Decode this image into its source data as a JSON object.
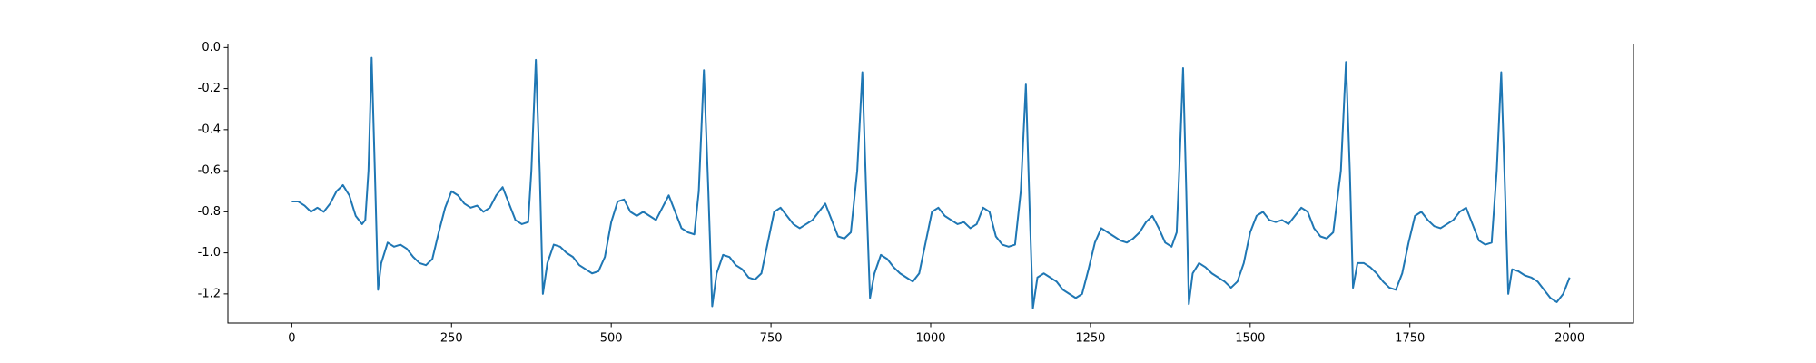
{
  "chart_data": {
    "type": "line",
    "color": "#1f77b4",
    "x": [
      0,
      10,
      20,
      30,
      40,
      50,
      60,
      70,
      80,
      90,
      100,
      110,
      115,
      120,
      125,
      130,
      135,
      140,
      150,
      160,
      170,
      180,
      190,
      200,
      210,
      220,
      230,
      240,
      250,
      260,
      270,
      280,
      290,
      300,
      310,
      320,
      330,
      340,
      350,
      360,
      370,
      375,
      382,
      388,
      393,
      400,
      410,
      420,
      430,
      440,
      450,
      460,
      470,
      480,
      490,
      500,
      510,
      520,
      530,
      540,
      550,
      560,
      570,
      580,
      590,
      600,
      610,
      620,
      630,
      637,
      645,
      652,
      658,
      665,
      675,
      685,
      695,
      705,
      715,
      725,
      735,
      745,
      755,
      765,
      775,
      785,
      795,
      805,
      815,
      825,
      835,
      845,
      855,
      865,
      875,
      885,
      893,
      899,
      905,
      912,
      922,
      932,
      942,
      952,
      962,
      972,
      982,
      992,
      1002,
      1012,
      1022,
      1032,
      1042,
      1052,
      1062,
      1072,
      1082,
      1092,
      1102,
      1112,
      1122,
      1132,
      1141,
      1149,
      1155,
      1160,
      1167,
      1177,
      1187,
      1197,
      1207,
      1217,
      1227,
      1237,
      1247,
      1257,
      1267,
      1277,
      1287,
      1297,
      1307,
      1317,
      1327,
      1337,
      1347,
      1357,
      1367,
      1377,
      1385,
      1389,
      1395,
      1400,
      1404,
      1410,
      1420,
      1430,
      1440,
      1450,
      1460,
      1470,
      1480,
      1490,
      1500,
      1510,
      1520,
      1530,
      1540,
      1550,
      1560,
      1570,
      1580,
      1590,
      1600,
      1610,
      1620,
      1630,
      1642,
      1650,
      1656,
      1661,
      1668,
      1678,
      1688,
      1698,
      1708,
      1718,
      1728,
      1738,
      1748,
      1758,
      1768,
      1778,
      1788,
      1798,
      1808,
      1818,
      1828,
      1838,
      1848,
      1858,
      1868,
      1878,
      1886,
      1893,
      1899,
      1904,
      1910,
      1920,
      1930,
      1940,
      1950,
      1960,
      1970,
      1980,
      1990,
      2000
    ],
    "values": [
      -0.75,
      -0.75,
      -0.77,
      -0.8,
      -0.78,
      -0.8,
      -0.76,
      -0.7,
      -0.67,
      -0.72,
      -0.82,
      -0.86,
      -0.84,
      -0.6,
      -0.05,
      -0.6,
      -1.18,
      -1.05,
      -0.95,
      -0.97,
      -0.96,
      -0.98,
      -1.02,
      -1.05,
      -1.06,
      -1.03,
      -0.9,
      -0.78,
      -0.7,
      -0.72,
      -0.76,
      -0.78,
      -0.77,
      -0.8,
      -0.78,
      -0.72,
      -0.68,
      -0.76,
      -0.84,
      -0.86,
      -0.85,
      -0.6,
      -0.06,
      -0.6,
      -1.2,
      -1.05,
      -0.96,
      -0.97,
      -1.0,
      -1.02,
      -1.06,
      -1.08,
      -1.1,
      -1.09,
      -1.02,
      -0.85,
      -0.75,
      -0.74,
      -0.8,
      -0.82,
      -0.8,
      -0.82,
      -0.84,
      -0.78,
      -0.72,
      -0.8,
      -0.88,
      -0.9,
      -0.91,
      -0.7,
      -0.11,
      -0.7,
      -1.26,
      -1.1,
      -1.01,
      -1.02,
      -1.06,
      -1.08,
      -1.12,
      -1.13,
      -1.1,
      -0.95,
      -0.8,
      -0.78,
      -0.82,
      -0.86,
      -0.88,
      -0.86,
      -0.84,
      -0.8,
      -0.76,
      -0.84,
      -0.92,
      -0.93,
      -0.9,
      -0.6,
      -0.12,
      -0.7,
      -1.22,
      -1.1,
      -1.01,
      -1.03,
      -1.07,
      -1.1,
      -1.12,
      -1.14,
      -1.1,
      -0.95,
      -0.8,
      -0.78,
      -0.82,
      -0.84,
      -0.86,
      -0.85,
      -0.88,
      -0.86,
      -0.78,
      -0.8,
      -0.92,
      -0.96,
      -0.97,
      -0.96,
      -0.7,
      -0.18,
      -0.8,
      -1.27,
      -1.12,
      -1.1,
      -1.12,
      -1.14,
      -1.18,
      -1.2,
      -1.22,
      -1.2,
      -1.08,
      -0.95,
      -0.88,
      -0.9,
      -0.92,
      -0.94,
      -0.95,
      -0.93,
      -0.9,
      -0.85,
      -0.82,
      -0.88,
      -0.95,
      -0.97,
      -0.9,
      -0.6,
      -0.1,
      -0.7,
      -1.25,
      -1.1,
      -1.05,
      -1.07,
      -1.1,
      -1.12,
      -1.14,
      -1.17,
      -1.14,
      -1.05,
      -0.9,
      -0.82,
      -0.8,
      -0.84,
      -0.85,
      -0.84,
      -0.86,
      -0.82,
      -0.78,
      -0.8,
      -0.88,
      -0.92,
      -0.93,
      -0.9,
      -0.6,
      -0.07,
      -0.6,
      -1.17,
      -1.05,
      -1.05,
      -1.07,
      -1.1,
      -1.14,
      -1.17,
      -1.18,
      -1.1,
      -0.95,
      -0.82,
      -0.8,
      -0.84,
      -0.87,
      -0.88,
      -0.86,
      -0.84,
      -0.8,
      -0.78,
      -0.86,
      -0.94,
      -0.96,
      -0.95,
      -0.6,
      -0.12,
      -0.7,
      -1.2,
      -1.08,
      -1.09,
      -1.11,
      -1.12,
      -1.14,
      -1.18,
      -1.22,
      -1.24,
      -1.2,
      -1.12
    ],
    "xlim": [
      -100,
      2100
    ],
    "xticks": [
      0,
      250,
      500,
      750,
      1000,
      1250,
      1500,
      1750,
      2000
    ],
    "ylim": [
      -1.342,
      0.017
    ],
    "yticks": [
      {
        "value": 0,
        "label": "0.0"
      },
      {
        "value": -0.2,
        "label": "-0.2"
      },
      {
        "value": -0.4,
        "label": "-0.4"
      },
      {
        "value": -0.6,
        "label": "-0.6"
      },
      {
        "value": -0.8,
        "label": "-0.8"
      },
      {
        "value": -1.0,
        "label": "-1.0"
      },
      {
        "value": -1.2,
        "label": "-1.2"
      }
    ],
    "grid": false
  }
}
